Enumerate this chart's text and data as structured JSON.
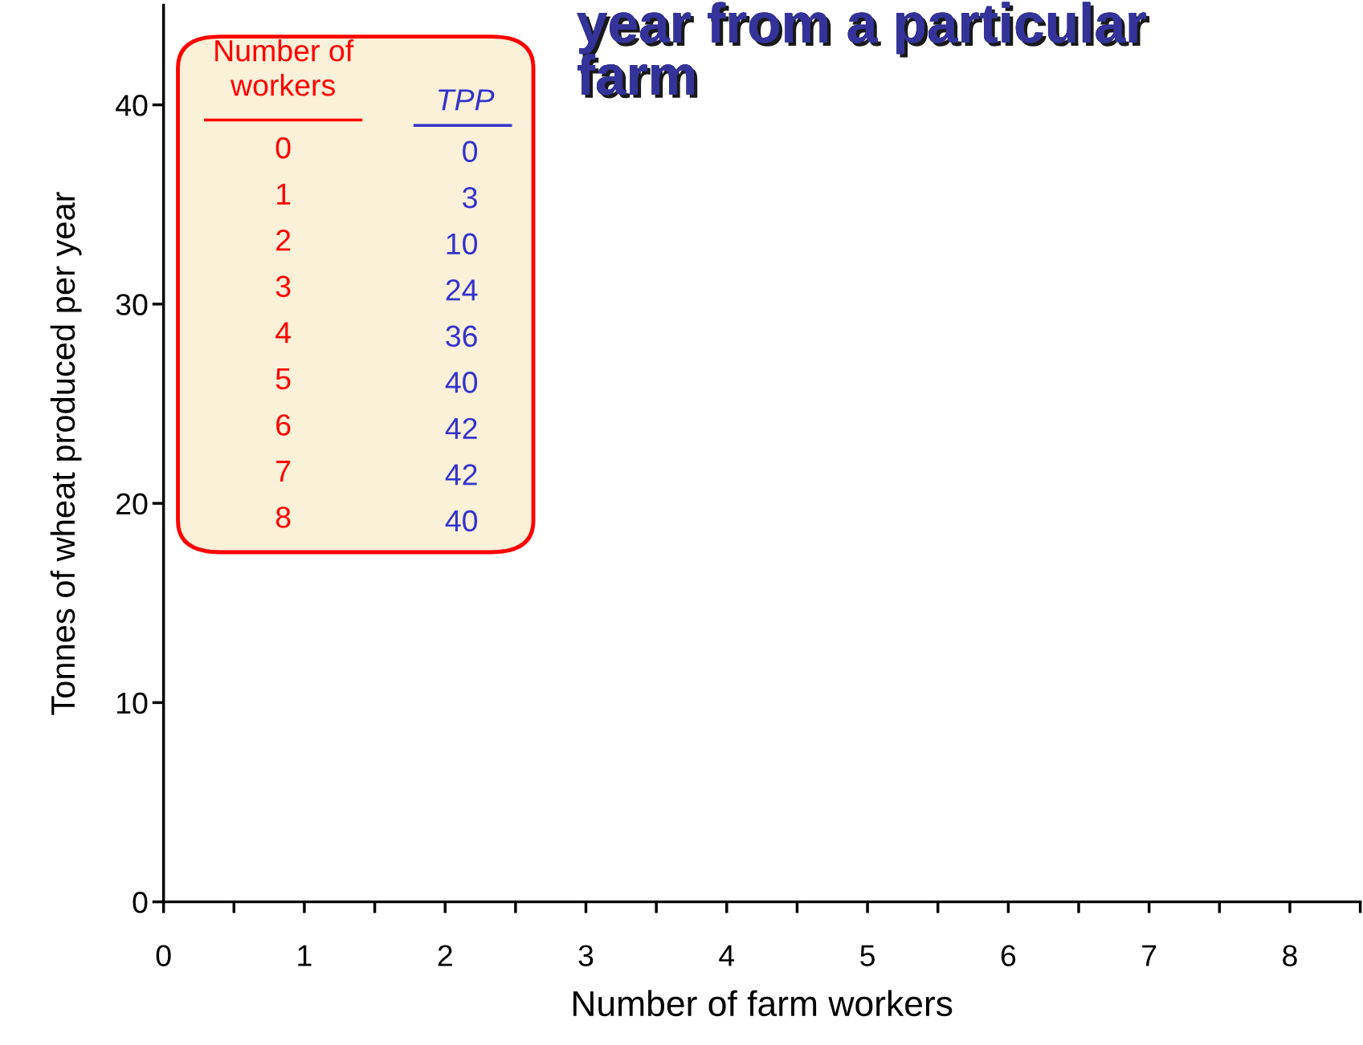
{
  "chart_data": {
    "type": "scatter",
    "title": "year from a particular\nfarm",
    "xlabel": "Number of farm workers",
    "ylabel": "Tonnes of wheat produced per year",
    "annotations": [
      "Number of\nworkers",
      "TPP",
      "0",
      "0",
      "1",
      "3",
      "2",
      "10",
      "3",
      "24",
      "4",
      "36",
      "5",
      "40",
      "6",
      "42",
      "7",
      "42",
      "8",
      "40"
    ],
    "xlim": [
      0,
      8.5
    ],
    "xticks": [
      0,
      {
        "value": 0.5,
        "label": null
      },
      1,
      {
        "value": 1.5,
        "label": null
      },
      2,
      {
        "value": 2.5,
        "label": null
      },
      3,
      {
        "value": 3.5,
        "label": null
      },
      4,
      {
        "value": 4.5,
        "label": null
      },
      5,
      {
        "value": 5.5,
        "label": null
      },
      6,
      {
        "value": 6.5,
        "label": null
      },
      7,
      {
        "value": 7.5,
        "label": null
      },
      8,
      {
        "value": 8.5,
        "label": null
      }
    ],
    "ylim": [
      0,
      45
    ],
    "yticks": [
      0,
      10,
      20,
      30,
      40
    ],
    "grid": false,
    "legend": false
  }
}
